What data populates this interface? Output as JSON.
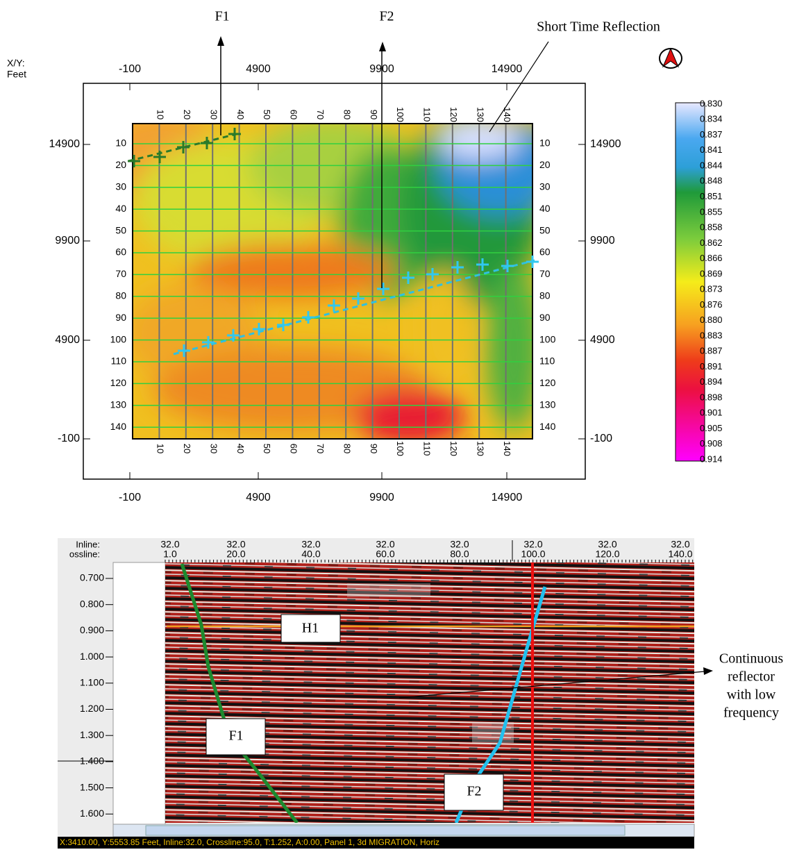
{
  "map": {
    "labels": {
      "f1": "F1",
      "f2": "F2",
      "short_time": "Short Time Reflection"
    },
    "axis_unit": [
      "X/Y:",
      "Feet"
    ],
    "x_ticks": [
      "-100",
      "4900",
      "9900",
      "14900"
    ],
    "y_ticks": [
      "14900",
      "9900",
      "4900",
      "-100"
    ],
    "grid_labels": [
      "10",
      "20",
      "30",
      "40",
      "50",
      "60",
      "70",
      "80",
      "90",
      "100",
      "110",
      "120",
      "130",
      "140"
    ],
    "colorbar": [
      "0.830",
      "0.834",
      "0.837",
      "0.841",
      "0.844",
      "0.848",
      "0.851",
      "0.855",
      "0.858",
      "0.862",
      "0.866",
      "0.869",
      "0.873",
      "0.876",
      "0.880",
      "0.883",
      "0.887",
      "0.891",
      "0.894",
      "0.898",
      "0.901",
      "0.905",
      "0.908",
      "0.914"
    ]
  },
  "section": {
    "header_labels": [
      "Inline:",
      "ossline:"
    ],
    "columns": [
      {
        "inline": "32.0",
        "crossline": "1.0"
      },
      {
        "inline": "32.0",
        "crossline": "20.0"
      },
      {
        "inline": "32.0",
        "crossline": "40.0"
      },
      {
        "inline": "32.0",
        "crossline": "60.0"
      },
      {
        "inline": "32.0",
        "crossline": "80.0"
      },
      {
        "inline": "32.0",
        "crossline": "100.0"
      },
      {
        "inline": "32.0",
        "crossline": "120.0"
      },
      {
        "inline": "32.0",
        "crossline": "140.0"
      }
    ],
    "y_ticks": [
      "0.700",
      "0.800",
      "0.900",
      "1.000",
      "1.100",
      "1.200",
      "1.300",
      "1.400",
      "1.500",
      "1.600"
    ],
    "labels": {
      "h1": "H1",
      "f1": "F1",
      "f2": "F2"
    },
    "annotation": [
      "Continuous",
      "reflector",
      "with low",
      "frequency"
    ],
    "status": "X:3410.00,  Y:5553.85 Feet,   Inline:32.0,  Crossline:95.0,   T:1.252,  A:0.00,  Panel 1,  3d MIGRATION,  Horiz"
  }
}
